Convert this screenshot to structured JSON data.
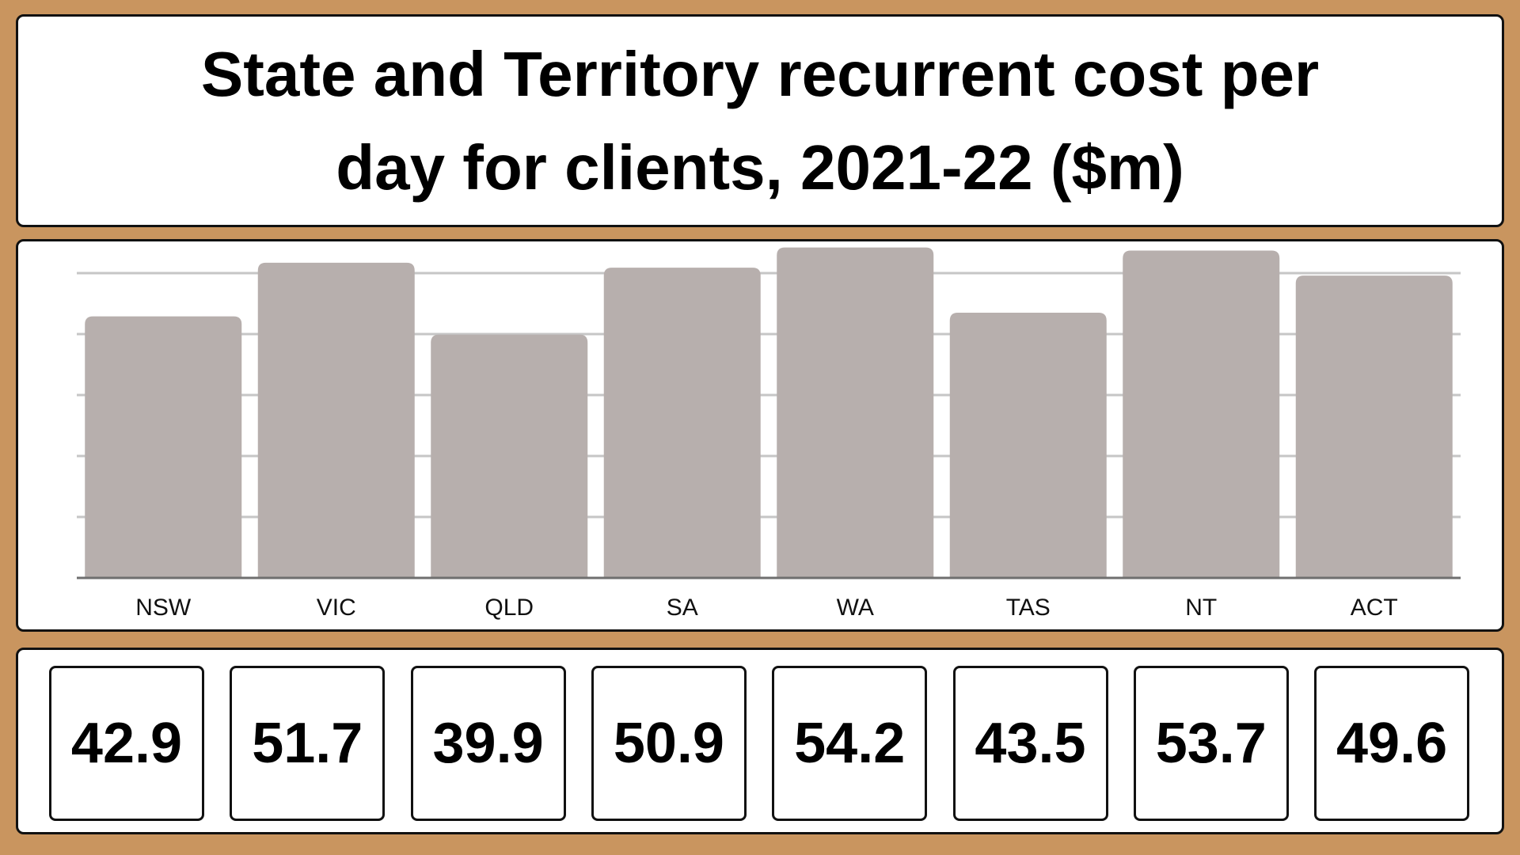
{
  "chart_data": {
    "type": "bar",
    "title": "State and Territory recurrent cost per day for clients, 2021-22 ($m)",
    "categories": [
      "NSW",
      "VIC",
      "QLD",
      "SA",
      "WA",
      "TAS",
      "NT",
      "ACT"
    ],
    "values": [
      42.9,
      51.7,
      39.9,
      50.9,
      54.2,
      43.5,
      53.7,
      49.6
    ],
    "value_labels": [
      "42.9",
      "51.7",
      "39.9",
      "50.9",
      "54.2",
      "43.5",
      "53.7",
      "49.6"
    ],
    "xlabel": "",
    "ylabel": "",
    "ylim": [
      0,
      50
    ],
    "yticks": [
      0,
      10,
      20,
      30,
      40,
      50
    ],
    "grid": true,
    "legend": "none",
    "colors": {
      "bar": "#b7afad",
      "grid": "#c6c6c6",
      "axis": "#6f6f6f",
      "background": "#c9955f"
    }
  }
}
